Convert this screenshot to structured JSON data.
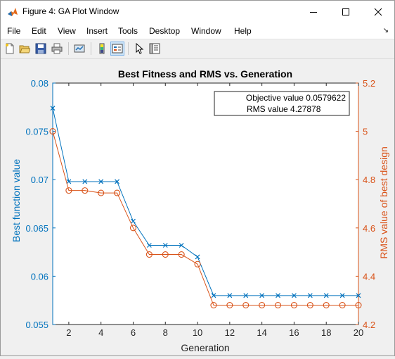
{
  "window": {
    "title": "Figure 4: GA Plot Window"
  },
  "menu": {
    "items": [
      "File",
      "Edit",
      "View",
      "Insert",
      "Tools",
      "Desktop",
      "Window",
      "Help"
    ]
  },
  "toolbar": {
    "icons": [
      "new-figure-icon",
      "open-file-icon",
      "save-icon",
      "print-icon",
      "link-icon",
      "colorbar-icon",
      "legend-icon",
      "pointer-icon",
      "property-inspector-icon"
    ]
  },
  "colors": {
    "left_axis": "#0072BD",
    "right_axis": "#D95319",
    "title_bar": "#ffffff",
    "background": "#f0f0f0"
  },
  "chart_data": {
    "type": "line",
    "title": "Best Fitness and RMS vs. Generation",
    "xlabel": "Generation",
    "ylabel_left": "Best function value",
    "ylabel_right": "RMS value of best design",
    "xlim": [
      1,
      20
    ],
    "ylim_left": [
      0.055,
      0.08
    ],
    "ylim_right": [
      4.2,
      5.2
    ],
    "x_ticks": [
      2,
      4,
      6,
      8,
      10,
      12,
      14,
      16,
      18,
      20
    ],
    "y_ticks_left": [
      "0.055",
      "0.06",
      "0.065",
      "0.07",
      "0.075",
      "0.08"
    ],
    "y_ticks_right": [
      "4.2",
      "4.4",
      "4.6",
      "4.8",
      "5",
      "5.2"
    ],
    "legend": {
      "placement": "top-right",
      "lines": [
        "Objective value 0.0579622",
        "RMS value 4.27878"
      ]
    },
    "x": [
      1,
      2,
      3,
      4,
      5,
      6,
      7,
      8,
      9,
      10,
      11,
      12,
      13,
      14,
      15,
      16,
      17,
      18,
      19,
      20
    ],
    "series": [
      {
        "axis": "left",
        "marker": "x",
        "values": [
          0.0774,
          0.0698,
          0.0698,
          0.0698,
          0.0698,
          0.0657,
          0.0632,
          0.0632,
          0.0632,
          0.062,
          0.058,
          0.058,
          0.058,
          0.058,
          0.058,
          0.058,
          0.058,
          0.058,
          0.058,
          0.058
        ]
      },
      {
        "axis": "right",
        "marker": "o",
        "values": [
          5.0,
          4.755,
          4.755,
          4.745,
          4.745,
          4.6,
          4.49,
          4.49,
          4.49,
          4.45,
          4.28,
          4.28,
          4.28,
          4.28,
          4.28,
          4.28,
          4.28,
          4.28,
          4.28,
          4.28
        ]
      }
    ]
  }
}
